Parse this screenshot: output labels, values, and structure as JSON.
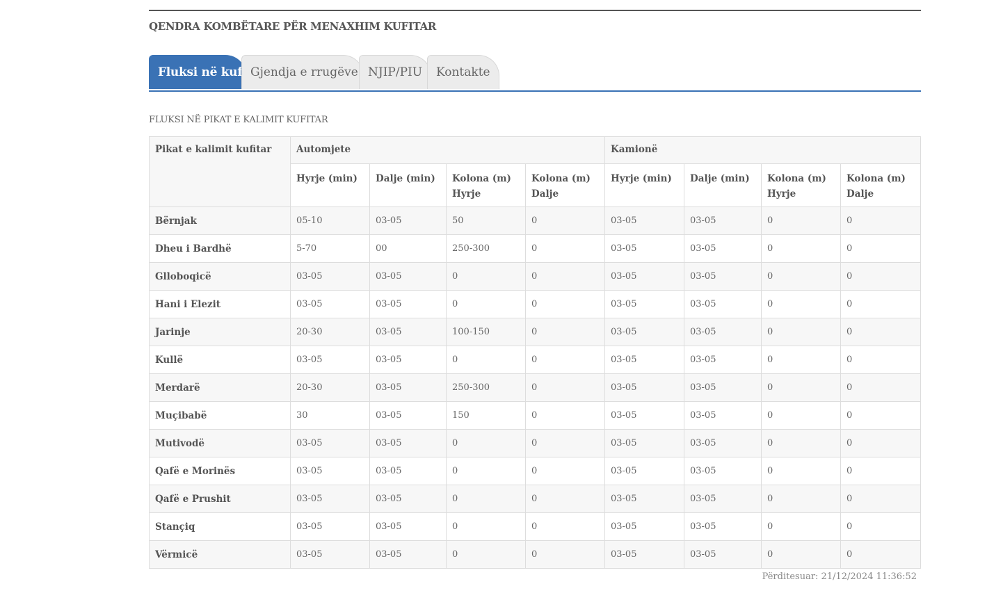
{
  "header": {
    "title": "QENDRA KOMBËTARE PËR MENAXHIM KUFITAR"
  },
  "tabs": [
    {
      "label": "Fluksi në kufi",
      "active": true
    },
    {
      "label": "Gjendja e rrugëve",
      "active": false
    },
    {
      "label": "NJIP/PIU",
      "active": false
    },
    {
      "label": "Kontakte",
      "active": false
    }
  ],
  "section": {
    "title": "FLUKSI NË PIKAT E KALIMIT KUFITAR"
  },
  "table": {
    "first_col": "Pikat e kalimit kufitar",
    "groups": [
      "Automjete",
      "Kamionë"
    ],
    "columns": [
      "Hyrje (min)",
      "Dalje (min)",
      "Kolona (m) Hyrje",
      "Kolona (m) Dalje",
      "Hyrje (min)",
      "Dalje (min)",
      "Kolona (m) Hyrje",
      "Kolona (m) Dalje"
    ],
    "rows": [
      {
        "name": "Bërnjak",
        "values": [
          "05-10",
          "03-05",
          "50",
          "0",
          "03-05",
          "03-05",
          "0",
          "0"
        ]
      },
      {
        "name": "Dheu i Bardhë",
        "values": [
          "5-70",
          "00",
          "250-300",
          "0",
          "03-05",
          "03-05",
          "0",
          "0"
        ]
      },
      {
        "name": "Glloboqicë",
        "values": [
          "03-05",
          "03-05",
          "0",
          "0",
          "03-05",
          "03-05",
          "0",
          "0"
        ]
      },
      {
        "name": "Hani i Elezit",
        "values": [
          "03-05",
          "03-05",
          "0",
          "0",
          "03-05",
          "03-05",
          "0",
          "0"
        ]
      },
      {
        "name": "Jarinje",
        "values": [
          "20-30",
          "03-05",
          "100-150",
          "0",
          "03-05",
          "03-05",
          "0",
          "0"
        ]
      },
      {
        "name": "Kullë",
        "values": [
          "03-05",
          "03-05",
          "0",
          "0",
          "03-05",
          "03-05",
          "0",
          "0"
        ]
      },
      {
        "name": "Merdarë",
        "values": [
          "20-30",
          "03-05",
          "250-300",
          "0",
          "03-05",
          "03-05",
          "0",
          "0"
        ]
      },
      {
        "name": "Muçibabë",
        "values": [
          "30",
          "03-05",
          "150",
          "0",
          "03-05",
          "03-05",
          "0",
          "0"
        ]
      },
      {
        "name": "Mutivodë",
        "values": [
          "03-05",
          "03-05",
          "0",
          "0",
          "03-05",
          "03-05",
          "0",
          "0"
        ]
      },
      {
        "name": "Qafë e Morinës",
        "values": [
          "03-05",
          "03-05",
          "0",
          "0",
          "03-05",
          "03-05",
          "0",
          "0"
        ]
      },
      {
        "name": "Qafë e Prushit",
        "values": [
          "03-05",
          "03-05",
          "0",
          "0",
          "03-05",
          "03-05",
          "0",
          "0"
        ]
      },
      {
        "name": "Stançiq",
        "values": [
          "03-05",
          "03-05",
          "0",
          "0",
          "03-05",
          "03-05",
          "0",
          "0"
        ]
      },
      {
        "name": "Vërmicë",
        "values": [
          "03-05",
          "03-05",
          "0",
          "0",
          "03-05",
          "03-05",
          "0",
          "0"
        ]
      }
    ]
  },
  "footer": {
    "updated": "Përditesuar: 21/12/2024 11:36:52"
  },
  "colors": {
    "accent": "#3a72b5",
    "tab_inactive": "#ececec",
    "row_stripe": "#f7f7f7"
  }
}
